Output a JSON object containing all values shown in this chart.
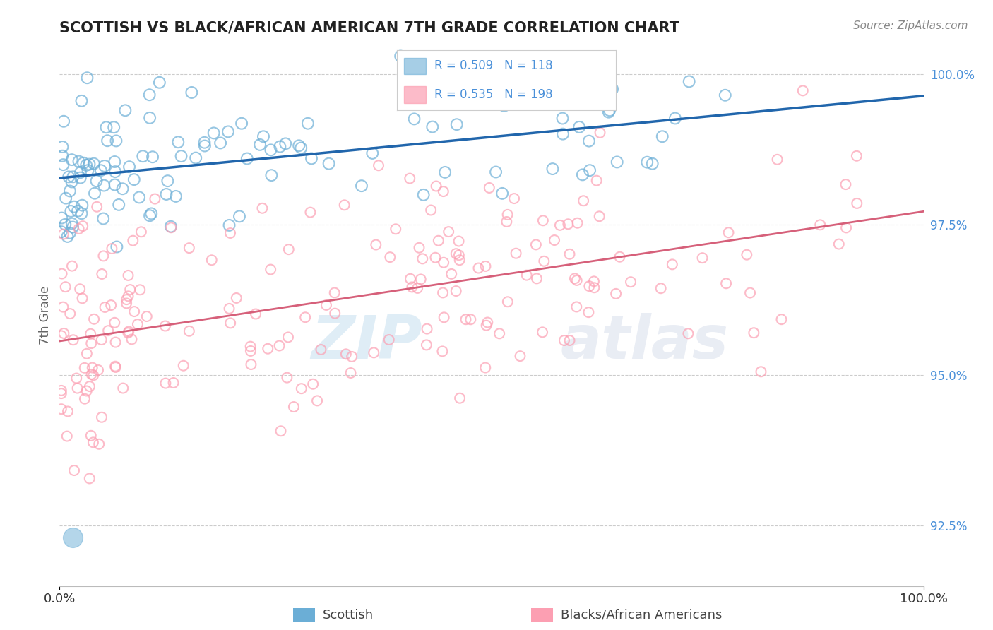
{
  "title": "SCOTTISH VS BLACK/AFRICAN AMERICAN 7TH GRADE CORRELATION CHART",
  "source": "Source: ZipAtlas.com",
  "ylabel": "7th Grade",
  "xlim": [
    0.0,
    100.0
  ],
  "ylim": [
    91.5,
    100.5
  ],
  "blue_R": 0.509,
  "blue_N": 118,
  "pink_R": 0.535,
  "pink_N": 198,
  "blue_color": "#6baed6",
  "pink_color": "#fc9fb2",
  "blue_line_color": "#2166ac",
  "pink_line_color": "#d6607a",
  "legend_label_blue": "Scottish",
  "legend_label_pink": "Blacks/African Americans",
  "watermark_zip": "ZIP",
  "watermark_atlas": "atlas",
  "background_color": "#ffffff",
  "grid_color": "#cccccc",
  "title_color": "#222222",
  "axis_label_color": "#666666",
  "right_tick_color": "#4a90d9",
  "source_color": "#888888"
}
